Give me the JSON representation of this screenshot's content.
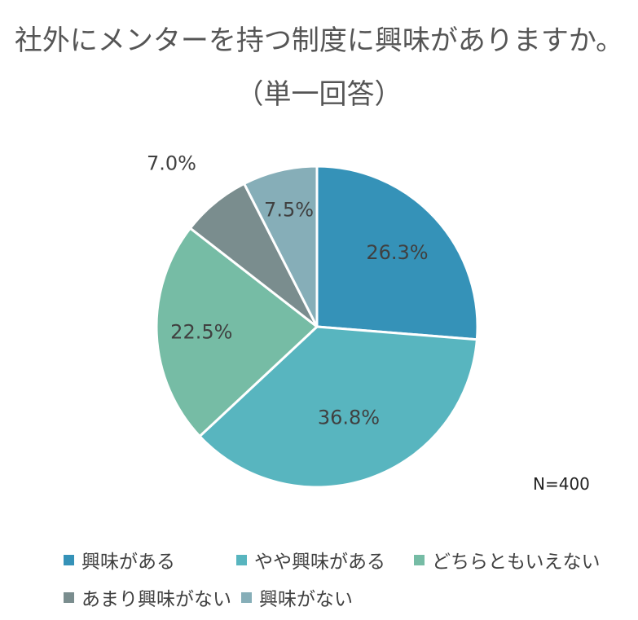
{
  "title_line1": "社外にメンターを持つ制度に興味がありますか。",
  "title_line2": "（単一回答）",
  "n_label": "N=400",
  "chart_data": {
    "type": "pie",
    "title": "社外にメンターを持つ制度に興味がありますか。（単一回答）",
    "categories": [
      "興味がある",
      "やや興味がある",
      "どちらともいえない",
      "あまり興味がない",
      "興味がない"
    ],
    "values": [
      26.3,
      36.8,
      22.5,
      7.0,
      7.5
    ],
    "labels": [
      "26.3%",
      "36.8%",
      "22.5%",
      "7.0%",
      "7.5%"
    ],
    "colors": [
      "#3592B8",
      "#58B5BF",
      "#76BCA5",
      "#7A8D8E",
      "#86AEB8"
    ],
    "legend_position": "bottom",
    "start_angle_deg": 0,
    "direction": "clockwise"
  }
}
